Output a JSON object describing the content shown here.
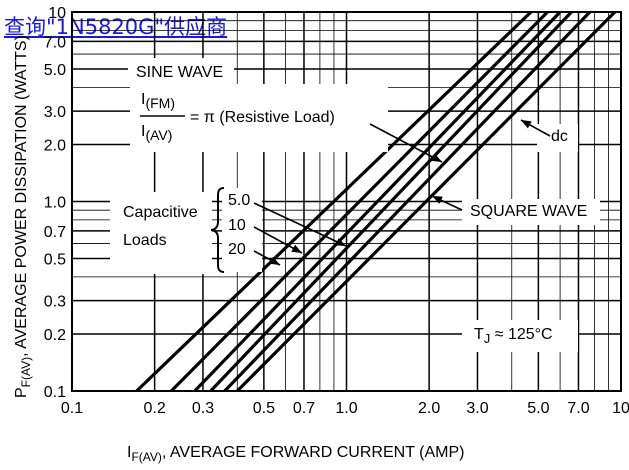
{
  "watermark": "查询\"1N5820G\"供应商",
  "chart_data": {
    "type": "line",
    "x_axis": {
      "label_main": "I",
      "label_sub": "F(AV)",
      "label_rest": ", AVERAGE FORWARD CURRENT (AMP)",
      "scale": "log",
      "range": [
        0.1,
        10
      ],
      "ticks": [
        0.1,
        0.2,
        0.3,
        0.5,
        0.7,
        1.0,
        2.0,
        3.0,
        5.0,
        7.0,
        10
      ],
      "tick_labels": [
        "0.1",
        "0.2",
        "0.3",
        "0.5",
        "0.7",
        "1.0",
        "2.0",
        "3.0",
        "5.0",
        "7.0",
        "10"
      ]
    },
    "y_axis": {
      "label_main": "P",
      "label_sub": "F(AV)",
      "label_rest": ", AVERAGE POWER DISSIPATION (WATTS)",
      "scale": "log",
      "range": [
        0.1,
        10
      ],
      "ticks": [
        0.1,
        0.2,
        0.3,
        0.5,
        0.7,
        1.0,
        2.0,
        3.0,
        5.0,
        7.0,
        10
      ],
      "tick_labels": [
        "0.1",
        "0.2",
        "0.3",
        "0.5",
        "0.7",
        "1.0",
        "2.0",
        "3.0",
        "5.0",
        "7.0",
        "10"
      ]
    },
    "grid": true,
    "series": [
      {
        "name": "Capacitive Loads 20",
        "points": [
          [
            0.172,
            0.1
          ],
          [
            4.7,
            10
          ]
        ]
      },
      {
        "name": "Capacitive Loads 10",
        "points": [
          [
            0.23,
            0.1
          ],
          [
            5.4,
            10
          ]
        ]
      },
      {
        "name": "Capacitive Loads 5.0",
        "points": [
          [
            0.28,
            0.1
          ],
          [
            6.0,
            10
          ]
        ]
      },
      {
        "name": "SINE WAVE",
        "points": [
          [
            0.32,
            0.1
          ],
          [
            6.6,
            10
          ]
        ]
      },
      {
        "name": "SQUARE WAVE",
        "points": [
          [
            0.36,
            0.1
          ],
          [
            7.7,
            10
          ]
        ]
      },
      {
        "name": "dc",
        "points": [
          [
            0.4,
            0.1
          ],
          [
            9.5,
            10
          ]
        ]
      }
    ],
    "annotations": {
      "sine_wave": "SINE WAVE",
      "ratio_num_main": "I",
      "ratio_num_sub": "(FM)",
      "ratio_den_main": "I",
      "ratio_den_sub": "(AV)",
      "ratio_rhs": "= π (Resistive Load)",
      "dc": "dc",
      "square_wave": "SQUARE WAVE",
      "capacitive_line1": "Capacitive",
      "capacitive_line2": "Loads",
      "cap_5": "5.0",
      "cap_10": "10",
      "cap_20": "20",
      "tj_main": "T",
      "tj_sub": "J",
      "tj_rest": " ≈ 125°C"
    },
    "colors": {
      "line": "#000000",
      "grid": "#000000",
      "watermark": "#1a1ad6"
    }
  }
}
